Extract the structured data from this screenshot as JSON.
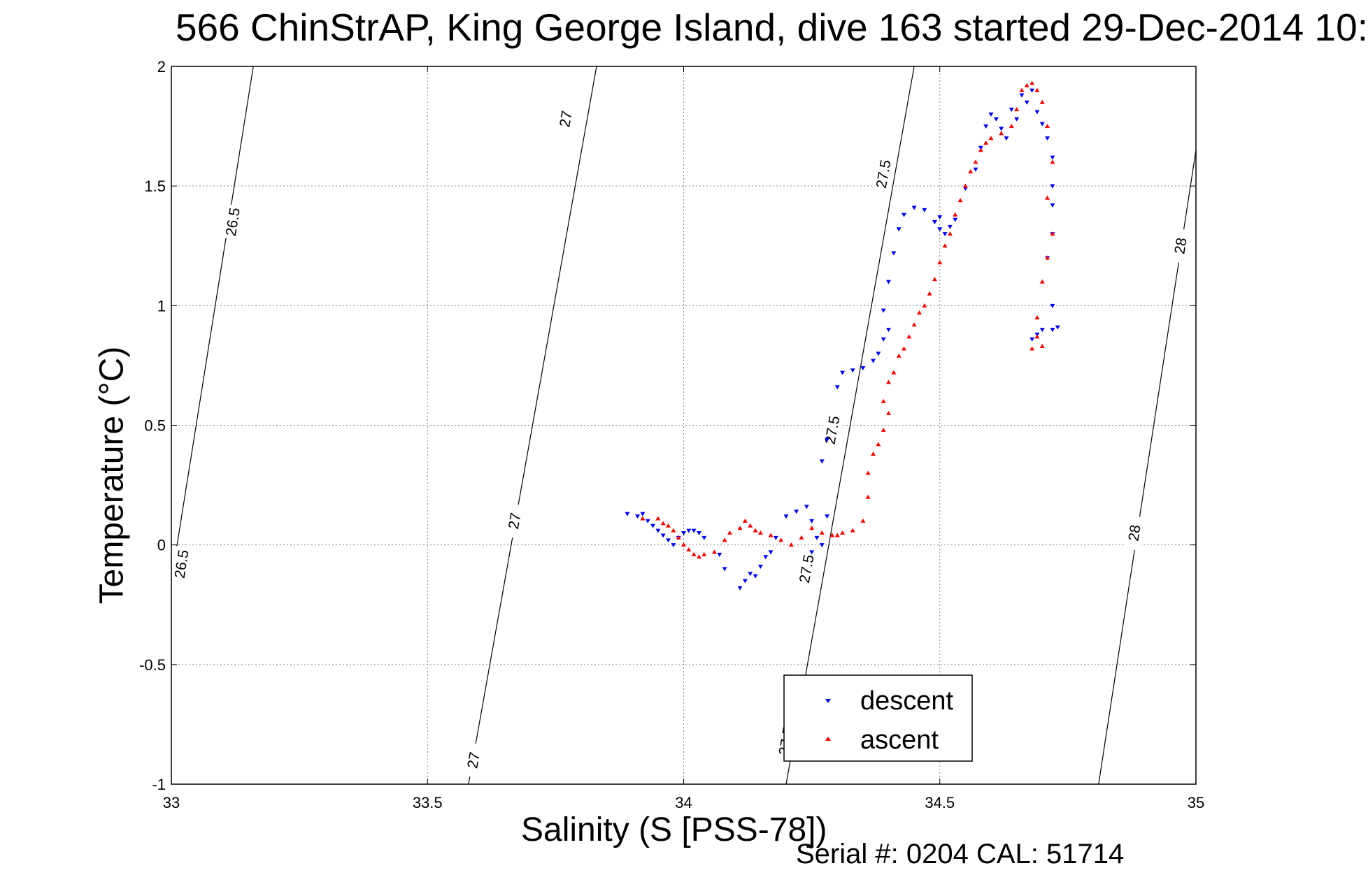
{
  "chart_data": {
    "type": "scatter",
    "title": "566 ChinStrAP, King George Island, dive 163 started 29-Dec-2014 10:",
    "xlabel": "Salinity (S [PSS-78])",
    "ylabel": "Temperature (°C)",
    "footer": "Serial #: 0204  CAL: 51714",
    "xlim": [
      33,
      35
    ],
    "ylim": [
      -1,
      2
    ],
    "xticks": [
      "33",
      "33.5",
      "34",
      "34.5",
      "35"
    ],
    "yticks": [
      "-1",
      "-0.5",
      "0",
      "0.5",
      "1",
      "1.5",
      "2"
    ],
    "grid": true,
    "legend_position": "bottom-right",
    "isopycnals": [
      {
        "label": "26.5",
        "points": [
          [
            33.0,
            -0.15
          ],
          [
            33.16,
            2.0
          ]
        ],
        "label_at": [
          [
            33.02,
            -0.08
          ],
          [
            33.12,
            1.35
          ]
        ]
      },
      {
        "label": "27",
        "points": [
          [
            33.58,
            -1.0
          ],
          [
            33.83,
            2.0
          ]
        ],
        "label_at": [
          [
            33.59,
            -0.9
          ],
          [
            33.67,
            0.1
          ],
          [
            33.77,
            1.78
          ]
        ]
      },
      {
        "label": "27.5",
        "points": [
          [
            34.2,
            -1.0
          ],
          [
            34.45,
            2.0
          ]
        ],
        "label_at": [
          [
            34.2,
            -0.82
          ],
          [
            34.24,
            -0.1
          ],
          [
            34.29,
            0.48
          ],
          [
            34.39,
            1.55
          ]
        ]
      },
      {
        "label": "28",
        "points": [
          [
            34.81,
            -1.0
          ],
          [
            35.0,
            1.65
          ]
        ],
        "label_at": [
          [
            34.88,
            0.05
          ],
          [
            34.97,
            1.25
          ]
        ]
      }
    ],
    "series": [
      {
        "name": "descent",
        "color": "#0000ff",
        "marker": "triangle-down",
        "points": [
          [
            33.89,
            0.13
          ],
          [
            33.91,
            0.12
          ],
          [
            33.92,
            0.13
          ],
          [
            33.93,
            0.1
          ],
          [
            33.94,
            0.08
          ],
          [
            33.95,
            0.06
          ],
          [
            33.96,
            0.04
          ],
          [
            33.97,
            0.02
          ],
          [
            33.98,
            0.0
          ],
          [
            33.99,
            0.03
          ],
          [
            34.0,
            0.05
          ],
          [
            34.01,
            0.06
          ],
          [
            34.02,
            0.06
          ],
          [
            34.03,
            0.05
          ],
          [
            34.04,
            0.03
          ],
          [
            34.07,
            -0.04
          ],
          [
            34.08,
            -0.1
          ],
          [
            34.11,
            -0.18
          ],
          [
            34.12,
            -0.15
          ],
          [
            34.13,
            -0.12
          ],
          [
            34.14,
            -0.13
          ],
          [
            34.15,
            -0.09
          ],
          [
            34.16,
            -0.05
          ],
          [
            34.17,
            -0.03
          ],
          [
            34.18,
            0.03
          ],
          [
            34.2,
            0.12
          ],
          [
            34.22,
            0.14
          ],
          [
            34.24,
            0.16
          ],
          [
            34.25,
            0.1
          ],
          [
            34.26,
            0.03
          ],
          [
            34.25,
            -0.03
          ],
          [
            34.27,
            0.0
          ],
          [
            34.28,
            0.12
          ],
          [
            34.27,
            0.35
          ],
          [
            34.28,
            0.44
          ],
          [
            34.3,
            0.66
          ],
          [
            34.31,
            0.72
          ],
          [
            34.33,
            0.73
          ],
          [
            34.35,
            0.74
          ],
          [
            34.37,
            0.77
          ],
          [
            34.38,
            0.8
          ],
          [
            34.39,
            0.86
          ],
          [
            34.4,
            0.9
          ],
          [
            34.39,
            0.98
          ],
          [
            34.4,
            1.1
          ],
          [
            34.41,
            1.22
          ],
          [
            34.42,
            1.32
          ],
          [
            34.43,
            1.38
          ],
          [
            34.45,
            1.41
          ],
          [
            34.47,
            1.4
          ],
          [
            34.49,
            1.35
          ],
          [
            34.5,
            1.32
          ],
          [
            34.51,
            1.3
          ],
          [
            34.5,
            1.37
          ],
          [
            34.52,
            1.33
          ],
          [
            34.53,
            1.36
          ],
          [
            34.55,
            1.49
          ],
          [
            34.57,
            1.57
          ],
          [
            34.58,
            1.66
          ],
          [
            34.59,
            1.75
          ],
          [
            34.6,
            1.8
          ],
          [
            34.61,
            1.78
          ],
          [
            34.62,
            1.74
          ],
          [
            34.63,
            1.7
          ],
          [
            34.64,
            1.82
          ],
          [
            34.65,
            1.78
          ],
          [
            34.66,
            1.88
          ],
          [
            34.67,
            1.85
          ],
          [
            34.68,
            1.9
          ],
          [
            34.69,
            1.81
          ],
          [
            34.7,
            1.76
          ],
          [
            34.71,
            1.7
          ],
          [
            34.72,
            1.62
          ],
          [
            34.72,
            1.5
          ],
          [
            34.72,
            1.42
          ],
          [
            34.72,
            1.3
          ],
          [
            34.71,
            1.2
          ],
          [
            34.72,
            1.0
          ],
          [
            34.69,
            0.88
          ],
          [
            34.7,
            0.9
          ],
          [
            34.72,
            0.9
          ],
          [
            34.73,
            0.91
          ],
          [
            34.68,
            0.86
          ]
        ]
      },
      {
        "name": "ascent",
        "color": "#ff0000",
        "marker": "triangle-up",
        "points": [
          [
            33.92,
            0.11
          ],
          [
            33.95,
            0.11
          ],
          [
            33.96,
            0.09
          ],
          [
            33.97,
            0.08
          ],
          [
            33.98,
            0.06
          ],
          [
            33.99,
            0.03
          ],
          [
            34.0,
            0.0
          ],
          [
            34.01,
            -0.02
          ],
          [
            34.02,
            -0.04
          ],
          [
            34.03,
            -0.05
          ],
          [
            34.04,
            -0.04
          ],
          [
            34.06,
            -0.03
          ],
          [
            34.08,
            0.02
          ],
          [
            34.09,
            0.05
          ],
          [
            34.11,
            0.07
          ],
          [
            34.12,
            0.1
          ],
          [
            34.13,
            0.08
          ],
          [
            34.14,
            0.06
          ],
          [
            34.15,
            0.05
          ],
          [
            34.17,
            0.04
          ],
          [
            34.19,
            0.02
          ],
          [
            34.21,
            0.0
          ],
          [
            34.23,
            0.03
          ],
          [
            34.25,
            0.07
          ],
          [
            34.27,
            0.05
          ],
          [
            34.29,
            0.04
          ],
          [
            34.3,
            0.04
          ],
          [
            34.31,
            0.05
          ],
          [
            34.33,
            0.06
          ],
          [
            34.35,
            0.1
          ],
          [
            34.36,
            0.2
          ],
          [
            34.36,
            0.3
          ],
          [
            34.37,
            0.38
          ],
          [
            34.38,
            0.42
          ],
          [
            34.39,
            0.48
          ],
          [
            34.4,
            0.55
          ],
          [
            34.39,
            0.6
          ],
          [
            34.4,
            0.68
          ],
          [
            34.41,
            0.72
          ],
          [
            34.42,
            0.79
          ],
          [
            34.43,
            0.82
          ],
          [
            34.44,
            0.87
          ],
          [
            34.45,
            0.92
          ],
          [
            34.46,
            0.97
          ],
          [
            34.47,
            1.0
          ],
          [
            34.48,
            1.05
          ],
          [
            34.49,
            1.11
          ],
          [
            34.5,
            1.18
          ],
          [
            34.51,
            1.25
          ],
          [
            34.52,
            1.3
          ],
          [
            34.53,
            1.38
          ],
          [
            34.54,
            1.44
          ],
          [
            34.55,
            1.5
          ],
          [
            34.56,
            1.56
          ],
          [
            34.57,
            1.6
          ],
          [
            34.58,
            1.65
          ],
          [
            34.59,
            1.68
          ],
          [
            34.6,
            1.7
          ],
          [
            34.62,
            1.72
          ],
          [
            34.64,
            1.75
          ],
          [
            34.65,
            1.82
          ],
          [
            34.66,
            1.9
          ],
          [
            34.67,
            1.92
          ],
          [
            34.68,
            1.93
          ],
          [
            34.69,
            1.9
          ],
          [
            34.7,
            1.85
          ],
          [
            34.71,
            1.75
          ],
          [
            34.72,
            1.6
          ],
          [
            34.71,
            1.45
          ],
          [
            34.72,
            1.3
          ],
          [
            34.71,
            1.2
          ],
          [
            34.7,
            1.1
          ],
          [
            34.69,
            0.95
          ],
          [
            34.69,
            0.87
          ],
          [
            34.7,
            0.83
          ],
          [
            34.68,
            0.82
          ]
        ]
      }
    ]
  }
}
